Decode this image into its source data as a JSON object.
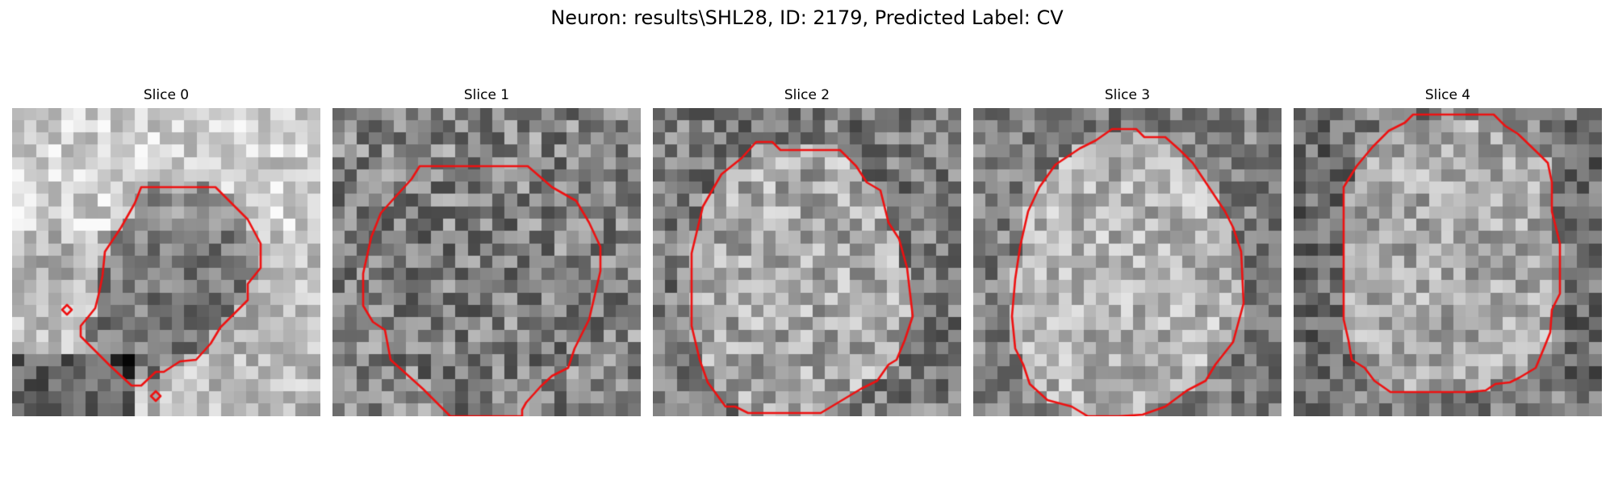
{
  "figure": {
    "title": "Neuron: results\\SHL28, ID: 2179, Predicted Label: CV"
  },
  "panels": [
    {
      "title": "Slice 0",
      "contour_color": "#ee1111"
    },
    {
      "title": "Slice 1",
      "contour_color": "#ee1111"
    },
    {
      "title": "Slice 2",
      "contour_color": "#ee1111"
    },
    {
      "title": "Slice 3",
      "contour_color": "#ee1111"
    },
    {
      "title": "Slice 4",
      "contour_color": "#ee1111"
    }
  ],
  "colormap": "gray"
}
